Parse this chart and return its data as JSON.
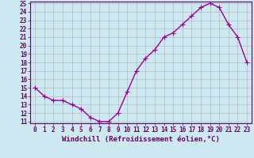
{
  "x": [
    0,
    1,
    2,
    3,
    4,
    5,
    6,
    7,
    8,
    9,
    10,
    11,
    12,
    13,
    14,
    15,
    16,
    17,
    18,
    19,
    20,
    21,
    22,
    23
  ],
  "y": [
    15,
    14,
    13.5,
    13.5,
    13,
    12.5,
    11.5,
    11,
    11,
    12,
    14.5,
    17,
    18.5,
    19.5,
    21,
    21.5,
    22.5,
    23.5,
    24.5,
    25,
    24.5,
    22.5,
    21,
    18
  ],
  "line_color": "#990099",
  "marker": "+",
  "markersize": 4,
  "linewidth": 1.0,
  "markeredgewidth": 0.8,
  "xlabel": "Windchill (Refroidissement éolien,°C)",
  "xlabel_fontsize": 6.5,
  "bg_color": "#cce8f0",
  "grid_color": "#b0b0b0",
  "ylim": [
    11,
    25
  ],
  "yticks": [
    11,
    12,
    13,
    14,
    15,
    16,
    17,
    18,
    19,
    20,
    21,
    22,
    23,
    24,
    25
  ],
  "xticks": [
    0,
    1,
    2,
    3,
    4,
    5,
    6,
    7,
    8,
    9,
    10,
    11,
    12,
    13,
    14,
    15,
    16,
    17,
    18,
    19,
    20,
    21,
    22,
    23
  ],
  "tick_fontsize": 5.5,
  "spine_color": "#660066",
  "label_color": "#660066"
}
